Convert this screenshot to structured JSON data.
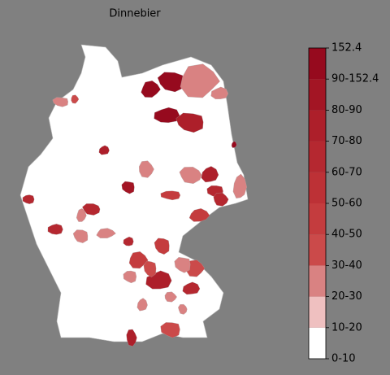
{
  "title": "Dinnebier",
  "colorbar_ticks": [
    {
      "value": 0,
      "label": "0-10"
    },
    {
      "value": 10,
      "label": "10-20"
    },
    {
      "value": 20,
      "label": "20-30"
    },
    {
      "value": 30,
      "label": "30-40"
    },
    {
      "value": 40,
      "label": "40-50"
    },
    {
      "value": 50,
      "label": "50-60"
    },
    {
      "value": 60,
      "label": "60-70"
    },
    {
      "value": 70,
      "label": "70-80"
    },
    {
      "value": 80,
      "label": "80-90"
    },
    {
      "value": 90,
      "label": "90-152.4"
    },
    {
      "value": 152.4,
      "label": "152.4"
    }
  ],
  "colors": [
    "#ffffff",
    "#efc0c0",
    "#d98282",
    "#cb4a4a",
    "#c43c3e",
    "#bd3136",
    "#b52830",
    "#ad1f2a",
    "#a31524",
    "#960a1e"
  ],
  "region_values": [
    110,
    95,
    100,
    75,
    25,
    25,
    28,
    35,
    70,
    80,
    22,
    75,
    65,
    60,
    25,
    45,
    25,
    40,
    60,
    60,
    28,
    60,
    25,
    25,
    60,
    40,
    45,
    75,
    35,
    35,
    65,
    22,
    25,
    22,
    35,
    75,
    110,
    22,
    22
  ]
}
